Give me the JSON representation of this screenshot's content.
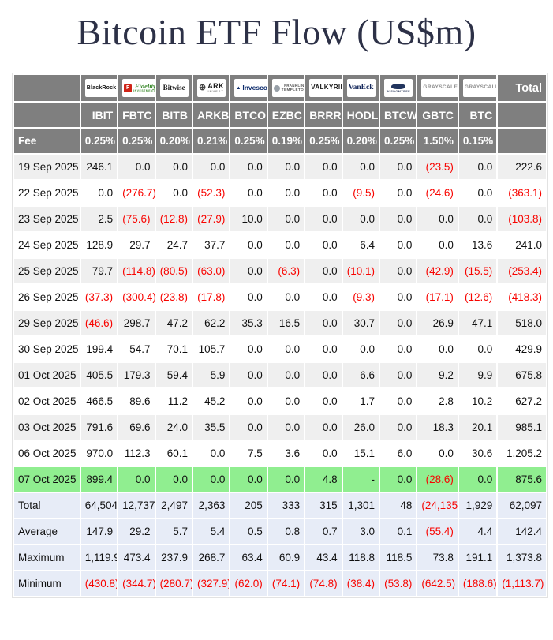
{
  "title": "Bitcoin ETF Flow (US$m)",
  "colors": {
    "header_bg": "#7f7f7f",
    "header_text": "#ffffff",
    "row_alt_bg": "#efefef",
    "highlight_row_bg": "#90ee90",
    "summary_row_bg": "#e7ecf7",
    "negative_text": "#f80400",
    "title_text": "#2d3147"
  },
  "table": {
    "fee_label": "Fee",
    "total_label": "Total",
    "providers": [
      {
        "slug": "blackrock",
        "ticker": "IBIT",
        "fee": "0.25%",
        "logo": {
          "main": "BlackRock"
        }
      },
      {
        "slug": "fidelity",
        "ticker": "FBTC",
        "fee": "0.25%",
        "logo": {
          "icon": "F",
          "main": "Fidelity",
          "sub": "INVESTMENTS"
        }
      },
      {
        "slug": "bitwise",
        "ticker": "BITB",
        "fee": "0.20%",
        "logo": {
          "main": "Bitwise"
        }
      },
      {
        "slug": "ark",
        "ticker": "ARKB",
        "fee": "0.21%",
        "logo": {
          "icon": "⊕",
          "main": "ARK",
          "sub": "INVEST"
        }
      },
      {
        "slug": "invesco",
        "ticker": "BTCO",
        "fee": "0.25%",
        "logo": {
          "icon": "▲",
          "main": "Invesco"
        }
      },
      {
        "slug": "franklin",
        "ticker": "EZBC",
        "fee": "0.19%",
        "logo": {
          "icon": "",
          "main": "FRANKLIN",
          "sub": "TEMPLETON"
        }
      },
      {
        "slug": "valkyrie",
        "ticker": "BRRR",
        "fee": "0.25%",
        "logo": {
          "main": "VALKYRIE"
        }
      },
      {
        "slug": "vaneck",
        "ticker": "HODL",
        "fee": "0.20%",
        "logo": {
          "main": "VanEck"
        }
      },
      {
        "slug": "wisdomtree",
        "ticker": "BTCW",
        "fee": "0.25%",
        "logo": {
          "icon": "",
          "sub": "WISDOMTREE"
        }
      },
      {
        "slug": "grayscale",
        "ticker": "GBTC",
        "fee": "1.50%",
        "logo": {
          "main": "GRAYSCALE"
        }
      },
      {
        "slug": "grayscale",
        "ticker": "BTC",
        "fee": "0.15%",
        "logo": {
          "main": "GRAYSCALE"
        }
      }
    ],
    "rows": [
      {
        "date": "19 Sep 2025",
        "highlight": false,
        "values": [
          "246.1",
          "0.0",
          "0.0",
          "0.0",
          "0.0",
          "0.0",
          "0.0",
          "0.0",
          "0.0",
          "(23.5)",
          "0.0",
          "222.6"
        ]
      },
      {
        "date": "22 Sep 2025",
        "highlight": false,
        "values": [
          "0.0",
          "(276.7)",
          "0.0",
          "(52.3)",
          "0.0",
          "0.0",
          "0.0",
          "(9.5)",
          "0.0",
          "(24.6)",
          "0.0",
          "(363.1)"
        ]
      },
      {
        "date": "23 Sep 2025",
        "highlight": false,
        "values": [
          "2.5",
          "(75.6)",
          "(12.8)",
          "(27.9)",
          "10.0",
          "0.0",
          "0.0",
          "0.0",
          "0.0",
          "0.0",
          "0.0",
          "(103.8)"
        ]
      },
      {
        "date": "24 Sep 2025",
        "highlight": false,
        "values": [
          "128.9",
          "29.7",
          "24.7",
          "37.7",
          "0.0",
          "0.0",
          "0.0",
          "6.4",
          "0.0",
          "0.0",
          "13.6",
          "241.0"
        ]
      },
      {
        "date": "25 Sep 2025",
        "highlight": false,
        "values": [
          "79.7",
          "(114.8)",
          "(80.5)",
          "(63.0)",
          "0.0",
          "(6.3)",
          "0.0",
          "(10.1)",
          "0.0",
          "(42.9)",
          "(15.5)",
          "(253.4)"
        ]
      },
      {
        "date": "26 Sep 2025",
        "highlight": false,
        "values": [
          "(37.3)",
          "(300.4)",
          "(23.8)",
          "(17.8)",
          "0.0",
          "0.0",
          "0.0",
          "(9.3)",
          "0.0",
          "(17.1)",
          "(12.6)",
          "(418.3)"
        ]
      },
      {
        "date": "29 Sep 2025",
        "highlight": false,
        "values": [
          "(46.6)",
          "298.7",
          "47.2",
          "62.2",
          "35.3",
          "16.5",
          "0.0",
          "30.7",
          "0.0",
          "26.9",
          "47.1",
          "518.0"
        ]
      },
      {
        "date": "30 Sep 2025",
        "highlight": false,
        "values": [
          "199.4",
          "54.7",
          "70.1",
          "105.7",
          "0.0",
          "0.0",
          "0.0",
          "0.0",
          "0.0",
          "0.0",
          "0.0",
          "429.9"
        ]
      },
      {
        "date": "01 Oct 2025",
        "highlight": false,
        "values": [
          "405.5",
          "179.3",
          "59.4",
          "5.9",
          "0.0",
          "0.0",
          "0.0",
          "6.6",
          "0.0",
          "9.2",
          "9.9",
          "675.8"
        ]
      },
      {
        "date": "02 Oct 2025",
        "highlight": false,
        "values": [
          "466.5",
          "89.6",
          "11.2",
          "45.2",
          "0.0",
          "0.0",
          "0.0",
          "1.7",
          "0.0",
          "2.8",
          "10.2",
          "627.2"
        ]
      },
      {
        "date": "03 Oct 2025",
        "highlight": false,
        "values": [
          "791.6",
          "69.6",
          "24.0",
          "35.5",
          "0.0",
          "0.0",
          "0.0",
          "26.0",
          "0.0",
          "18.3",
          "20.1",
          "985.1"
        ]
      },
      {
        "date": "06 Oct 2025",
        "highlight": false,
        "values": [
          "970.0",
          "112.3",
          "60.1",
          "0.0",
          "7.5",
          "3.6",
          "0.0",
          "15.1",
          "6.0",
          "0.0",
          "30.6",
          "1,205.2"
        ]
      },
      {
        "date": "07 Oct 2025",
        "highlight": true,
        "values": [
          "899.4",
          "0.0",
          "0.0",
          "0.0",
          "0.0",
          "0.0",
          "4.8",
          "-",
          "0.0",
          "(28.6)",
          "0.0",
          "875.6"
        ]
      }
    ],
    "summary": [
      {
        "label": "Total",
        "values": [
          "64,504",
          "12,737",
          "2,497",
          "2,363",
          "205",
          "333",
          "315",
          "1,301",
          "48",
          "(24,135)",
          "1,929",
          "62,097"
        ]
      },
      {
        "label": "Average",
        "values": [
          "147.9",
          "29.2",
          "5.7",
          "5.4",
          "0.5",
          "0.8",
          "0.7",
          "3.0",
          "0.1",
          "(55.4)",
          "4.4",
          "142.4"
        ]
      },
      {
        "label": "Maximum",
        "values": [
          "1,119.9",
          "473.4",
          "237.9",
          "268.7",
          "63.4",
          "60.9",
          "43.4",
          "118.8",
          "118.5",
          "73.8",
          "191.1",
          "1,373.8"
        ]
      },
      {
        "label": "Minimum",
        "values": [
          "(430.8)",
          "(344.7)",
          "(280.7)",
          "(327.9)",
          "(62.0)",
          "(74.1)",
          "(74.8)",
          "(38.4)",
          "(53.8)",
          "(642.5)",
          "(188.6)",
          "(1,113.7)"
        ]
      }
    ]
  },
  "chart_data": {
    "type": "table",
    "title": "Bitcoin ETF Flow (US$m)",
    "columns": [
      "IBIT",
      "FBTC",
      "BITB",
      "ARKB",
      "BTCO",
      "EZBC",
      "BRRR",
      "HODL",
      "BTCW",
      "GBTC",
      "BTC",
      "Total"
    ],
    "providers": [
      "BlackRock",
      "Fidelity",
      "Bitwise",
      "ARK Invest",
      "Invesco",
      "Franklin Templeton",
      "Valkyrie",
      "VanEck",
      "WisdomTree",
      "Grayscale",
      "Grayscale"
    ],
    "fees_percent": [
      0.25,
      0.25,
      0.2,
      0.21,
      0.25,
      0.19,
      0.25,
      0.2,
      0.25,
      1.5,
      0.15
    ],
    "rows": [
      {
        "date": "19 Sep 2025",
        "values": [
          246.1,
          0,
          0,
          0,
          0,
          0,
          0,
          0,
          0,
          -23.5,
          0,
          222.6
        ]
      },
      {
        "date": "22 Sep 2025",
        "values": [
          0,
          -276.7,
          0,
          -52.3,
          0,
          0,
          0,
          -9.5,
          0,
          -24.6,
          0,
          -363.1
        ]
      },
      {
        "date": "23 Sep 2025",
        "values": [
          2.5,
          -75.6,
          -12.8,
          -27.9,
          10.0,
          0,
          0,
          0,
          0,
          0,
          0,
          -103.8
        ]
      },
      {
        "date": "24 Sep 2025",
        "values": [
          128.9,
          29.7,
          24.7,
          37.7,
          0,
          0,
          0,
          6.4,
          0,
          0,
          13.6,
          241.0
        ]
      },
      {
        "date": "25 Sep 2025",
        "values": [
          79.7,
          -114.8,
          -80.5,
          -63.0,
          0,
          -6.3,
          0,
          -10.1,
          0,
          -42.9,
          -15.5,
          -253.4
        ]
      },
      {
        "date": "26 Sep 2025",
        "values": [
          -37.3,
          -300.4,
          -23.8,
          -17.8,
          0,
          0,
          0,
          -9.3,
          0,
          -17.1,
          -12.6,
          -418.3
        ]
      },
      {
        "date": "29 Sep 2025",
        "values": [
          -46.6,
          298.7,
          47.2,
          62.2,
          35.3,
          16.5,
          0,
          30.7,
          0,
          26.9,
          47.1,
          518.0
        ]
      },
      {
        "date": "30 Sep 2025",
        "values": [
          199.4,
          54.7,
          70.1,
          105.7,
          0,
          0,
          0,
          0,
          0,
          0,
          0,
          429.9
        ]
      },
      {
        "date": "01 Oct 2025",
        "values": [
          405.5,
          179.3,
          59.4,
          5.9,
          0,
          0,
          0,
          6.6,
          0,
          9.2,
          9.9,
          675.8
        ]
      },
      {
        "date": "02 Oct 2025",
        "values": [
          466.5,
          89.6,
          11.2,
          45.2,
          0,
          0,
          0,
          1.7,
          0,
          2.8,
          10.2,
          627.2
        ]
      },
      {
        "date": "03 Oct 2025",
        "values": [
          791.6,
          69.6,
          24.0,
          35.5,
          0,
          0,
          0,
          26.0,
          0,
          18.3,
          20.1,
          985.1
        ]
      },
      {
        "date": "06 Oct 2025",
        "values": [
          970.0,
          112.3,
          60.1,
          0,
          7.5,
          3.6,
          0,
          15.1,
          6.0,
          0,
          30.6,
          1205.2
        ]
      },
      {
        "date": "07 Oct 2025",
        "values": [
          899.4,
          0,
          0,
          0,
          0,
          0,
          4.8,
          null,
          0,
          -28.6,
          0,
          875.6
        ]
      }
    ],
    "summary": {
      "Total": [
        64504,
        12737,
        2497,
        2363,
        205,
        333,
        315,
        1301,
        48,
        -24135,
        1929,
        62097
      ],
      "Average": [
        147.9,
        29.2,
        5.7,
        5.4,
        0.5,
        0.8,
        0.7,
        3.0,
        0.1,
        -55.4,
        4.4,
        142.4
      ],
      "Maximum": [
        1119.9,
        473.4,
        237.9,
        268.7,
        63.4,
        60.9,
        43.4,
        118.8,
        118.5,
        73.8,
        191.1,
        1373.8
      ],
      "Minimum": [
        -430.8,
        -344.7,
        -280.7,
        -327.9,
        -62.0,
        -74.1,
        -74.8,
        -38.4,
        -53.8,
        -642.5,
        -188.6,
        -1113.7
      ]
    },
    "highlighted_row": "07 Oct 2025"
  }
}
